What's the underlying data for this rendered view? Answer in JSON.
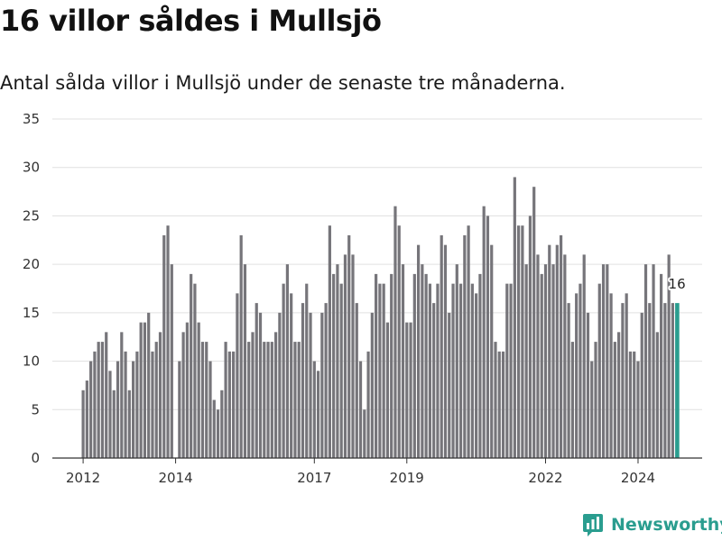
{
  "header": {
    "title": "16 villor såldes i Mullsjö",
    "subtitle": "Antal sålda villor i Mullsjö under de senaste tre månaderna."
  },
  "brand": {
    "name": "Newsworthy",
    "icon": "newsworthy-logo-icon"
  },
  "colors": {
    "bar": "#76757a",
    "highlight": "#2a9d8f",
    "grid": "#e0e0e0",
    "axis": "#333333"
  },
  "chart_data": {
    "type": "bar",
    "title": "16 villor såldes i Mullsjö",
    "subtitle": "Antal sålda villor i Mullsjö under de senaste tre månaderna.",
    "xlabel": "",
    "ylabel": "",
    "ylim": [
      0,
      35
    ],
    "yticks": [
      "0",
      "5",
      "10",
      "15",
      "20",
      "25",
      "30",
      "35"
    ],
    "xticks": [
      {
        "label": "2012",
        "index": 0
      },
      {
        "label": "2014",
        "index": 24
      },
      {
        "label": "2017",
        "index": 60
      },
      {
        "label": "2019",
        "index": 84
      },
      {
        "label": "2022",
        "index": 120
      },
      {
        "label": "2024",
        "index": 144
      }
    ],
    "grid": true,
    "highlight": {
      "index": 154,
      "label": "16"
    },
    "values": [
      7,
      8,
      10,
      11,
      12,
      12,
      13,
      9,
      7,
      10,
      13,
      11,
      7,
      10,
      11,
      14,
      14,
      15,
      11,
      12,
      13,
      23,
      24,
      20,
      0,
      10,
      13,
      14,
      19,
      18,
      14,
      12,
      12,
      10,
      6,
      5,
      7,
      12,
      11,
      11,
      17,
      23,
      20,
      12,
      13,
      16,
      15,
      12,
      12,
      12,
      13,
      15,
      18,
      20,
      17,
      12,
      12,
      16,
      18,
      15,
      10,
      9,
      15,
      16,
      24,
      19,
      20,
      18,
      21,
      23,
      21,
      16,
      10,
      5,
      11,
      15,
      19,
      18,
      18,
      14,
      19,
      26,
      24,
      20,
      14,
      14,
      19,
      22,
      20,
      19,
      18,
      16,
      18,
      23,
      22,
      15,
      18,
      20,
      18,
      23,
      24,
      18,
      17,
      19,
      26,
      25,
      22,
      12,
      11,
      11,
      18,
      18,
      29,
      24,
      24,
      20,
      25,
      28,
      21,
      19,
      20,
      22,
      20,
      22,
      23,
      21,
      16,
      12,
      17,
      18,
      21,
      15,
      10,
      12,
      18,
      20,
      20,
      17,
      12,
      13,
      16,
      17,
      11,
      11,
      10,
      15,
      20,
      16,
      20,
      13,
      19,
      16,
      21,
      16,
      16
    ]
  }
}
